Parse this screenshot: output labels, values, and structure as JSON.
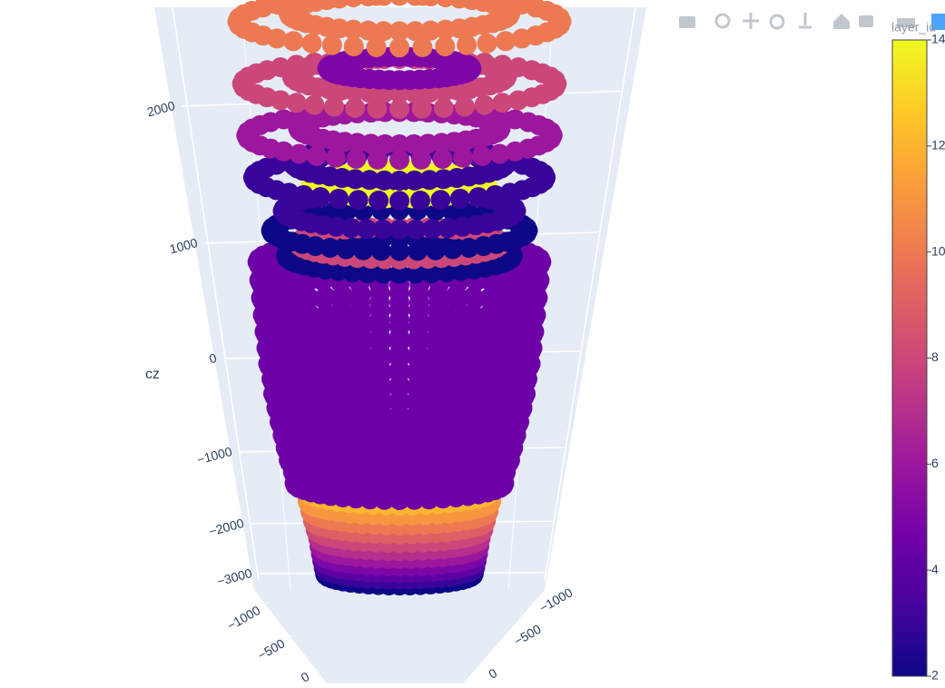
{
  "chart_data": {
    "type": "scatter3d",
    "z_axis_title": "cz",
    "zticks": [
      {
        "value": -3000,
        "label": "−3000"
      },
      {
        "value": -2000,
        "label": "−2000"
      },
      {
        "value": -1000,
        "label": "−1000"
      },
      0,
      1000,
      2000
    ],
    "xticks": [
      {
        "value": -1000,
        "label": "−1000"
      },
      {
        "value": -500,
        "label": "−500"
      },
      0
    ],
    "yticks": [
      {
        "value": -1000,
        "label": "−1000"
      },
      {
        "value": -500,
        "label": "−500"
      },
      0
    ],
    "colorbar_title": "layer_id",
    "clim": [
      2,
      14
    ],
    "cticks": [
      2,
      4,
      6,
      8,
      10,
      12,
      14
    ],
    "rings": [
      {
        "z": -3000,
        "r": 680,
        "layer": 2
      },
      {
        "z": -2850,
        "r": 680,
        "layer": 3
      },
      {
        "z": -2700,
        "r": 680,
        "layer": 4
      },
      {
        "z": -2550,
        "r": 680,
        "layer": 5
      },
      {
        "z": -2400,
        "r": 680,
        "layer": 6
      },
      {
        "z": -2250,
        "r": 680,
        "layer": 7
      },
      {
        "z": -2100,
        "r": 690,
        "layer": 8
      },
      {
        "z": -1950,
        "r": 700,
        "layer": 9
      },
      {
        "z": -1800,
        "r": 710,
        "layer": 10
      },
      {
        "z": -1650,
        "r": 720,
        "layer": 11
      },
      {
        "z": -1500,
        "r": 720,
        "layer": 12
      },
      {
        "z": -1400,
        "r": 800,
        "layer": 4.5
      },
      {
        "z": -1250,
        "r": 800,
        "layer": 4.5
      },
      {
        "z": -1100,
        "r": 820,
        "layer": 4.5
      },
      {
        "z": -950,
        "r": 830,
        "layer": 4.5
      },
      {
        "z": -800,
        "r": 840,
        "layer": 4.5
      },
      {
        "z": -650,
        "r": 850,
        "layer": 4.5
      },
      {
        "z": -500,
        "r": 860,
        "layer": 4.5
      },
      {
        "z": -350,
        "r": 870,
        "layer": 4.5
      },
      {
        "z": -200,
        "r": 870,
        "layer": 4.5
      },
      {
        "z": -50,
        "r": 880,
        "layer": 4.5
      },
      {
        "z": 100,
        "r": 880,
        "layer": 4.5
      },
      {
        "z": 250,
        "r": 880,
        "layer": 4.5
      },
      {
        "z": 400,
        "r": 880,
        "layer": 4.5
      },
      {
        "z": 550,
        "r": 880,
        "layer": 4.5
      },
      {
        "z": 700,
        "r": 880,
        "layer": 4.5
      },
      {
        "z": 850,
        "r": 880,
        "layer": 4.5
      },
      {
        "z": 900,
        "r": 700,
        "layer": 2
      },
      {
        "z": 1000,
        "r": 620,
        "layer": 8
      },
      {
        "z": 1100,
        "r": 780,
        "layer": 2
      },
      {
        "z": 1250,
        "r": 700,
        "layer": 3
      },
      {
        "z": 1450,
        "r": 520,
        "layer": 14
      },
      {
        "z": 1500,
        "r": 860,
        "layer": 3
      },
      {
        "z": 1600,
        "r": 620,
        "layer": 3
      },
      {
        "z": 1800,
        "r": 880,
        "layer": 6
      },
      {
        "z": 1850,
        "r": 580,
        "layer": 6
      },
      {
        "z": 2150,
        "r": 880,
        "layer": 8
      },
      {
        "z": 2200,
        "r": 600,
        "layer": 8
      },
      {
        "z": 2250,
        "r": 400,
        "layer": 5
      },
      {
        "z": 2550,
        "r": 880,
        "layer": 10
      },
      {
        "z": 2600,
        "r": 600,
        "layer": 10
      }
    ]
  }
}
